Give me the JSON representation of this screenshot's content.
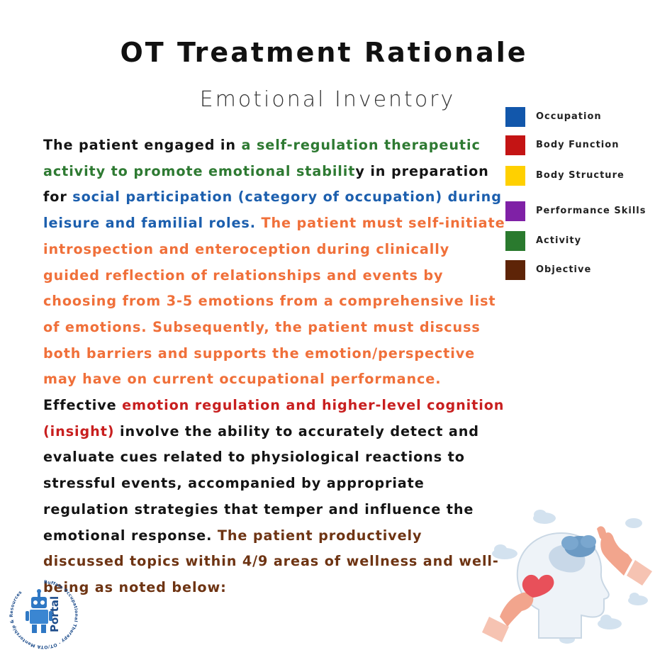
{
  "header": {
    "title": "OT Treatment Rationale",
    "subtitle": "Emotional Inventory"
  },
  "paragraph": {
    "seg1": "The patient engaged in ",
    "seg2": "a self-regulation therapeutic activity to promote emotional stabilit",
    "seg3": "y in preparation for ",
    "seg4": "social participation (category of occupation) during leisure and familial roles.",
    "seg5": " ",
    "seg6": "The patient must self-initiate introspection and enteroception during clinically guided reflection of relationships and events by choosing from 3-5 emotions from a comprehensive list of emotions. Subsequently, the patient must discuss both barriers and supports the emotion/perspective may have on current occupational performance.",
    "seg7": " Effective ",
    "seg8": "emotion regulation and higher-level cognition (insight)",
    "seg9": " involve the ability to accurately detect and evaluate cues related to physiological reactions to stressful events, accompanied by appropriate regulation strategies that temper and influence the emotional response.",
    "seg10": " ",
    "seg11": "The patient productively discussed topics within 4/9 areas of wellness and well-being as noted below:"
  },
  "legend": [
    {
      "label": "Occupation",
      "color": "#1257ab"
    },
    {
      "label": "Body Function",
      "color": "#c41414"
    },
    {
      "label": "Body Structure",
      "color": "#ffd000"
    },
    {
      "label": "Performance Skills",
      "color": "#7f21a6"
    },
    {
      "label": "Activity",
      "color": "#2a7a2e"
    },
    {
      "label": "Objective",
      "color": "#5e2407"
    }
  ],
  "logo": {
    "text": "Portal",
    "ring_text": "Buffalo Occupational Therapy · OT/OTA Mentorship & Resources"
  },
  "icons": {
    "logo": "robot-logo-icon",
    "illustration": "head-heart-brain-illustration"
  }
}
